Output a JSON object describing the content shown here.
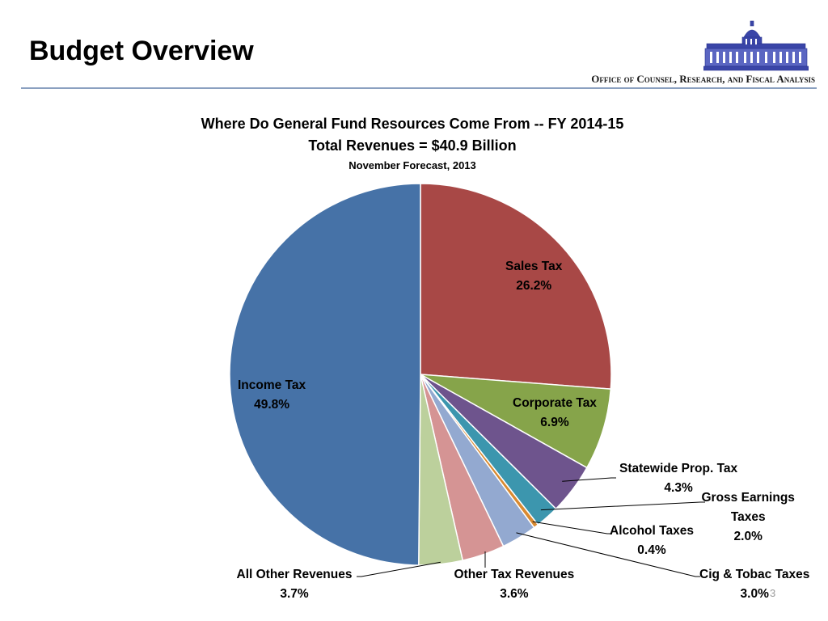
{
  "header": {
    "title": "Budget Overview",
    "office": "Office of Counsel, Research, and Fiscal Analysis"
  },
  "slide_number": "3",
  "chart_data": {
    "type": "pie",
    "title": "Where Do General Fund Resources Come From -- FY 2014-15",
    "subtitle": "Total Revenues = $40.9 Billion",
    "note": "November Forecast, 2013",
    "start_angle_deg": 0,
    "direction": "clockwise",
    "slices": [
      {
        "name": "Sales Tax",
        "value": 26.2,
        "pct_label": "26.2%",
        "color": "#a84846"
      },
      {
        "name": "Corporate Tax",
        "value": 6.9,
        "pct_label": "6.9%",
        "color": "#86a44a"
      },
      {
        "name": "Statewide Prop. Tax",
        "value": 4.3,
        "pct_label": "4.3%",
        "color": "#6e548d"
      },
      {
        "name": "Gross Earnings Taxes",
        "value": 2.0,
        "pct_label": "2.0%",
        "color": "#3c96ae"
      },
      {
        "name": "Alcohol Taxes",
        "value": 0.4,
        "pct_label": "0.4%",
        "color": "#d98a31"
      },
      {
        "name": "Cig & Tobac Taxes",
        "value": 3.0,
        "pct_label": "3.0%",
        "color": "#93a9d0"
      },
      {
        "name": "Other Tax Revenues",
        "value": 3.6,
        "pct_label": "3.6%",
        "color": "#d59494"
      },
      {
        "name": "All Other Revenues",
        "value": 3.7,
        "pct_label": "3.7%",
        "color": "#bcd09c"
      },
      {
        "name": "Income Tax",
        "value": 49.8,
        "pct_label": "49.8%",
        "color": "#4672a7"
      }
    ],
    "label_lines": {
      "Gross Earnings Taxes": [
        "Gross Earnings",
        "Taxes"
      ]
    }
  }
}
